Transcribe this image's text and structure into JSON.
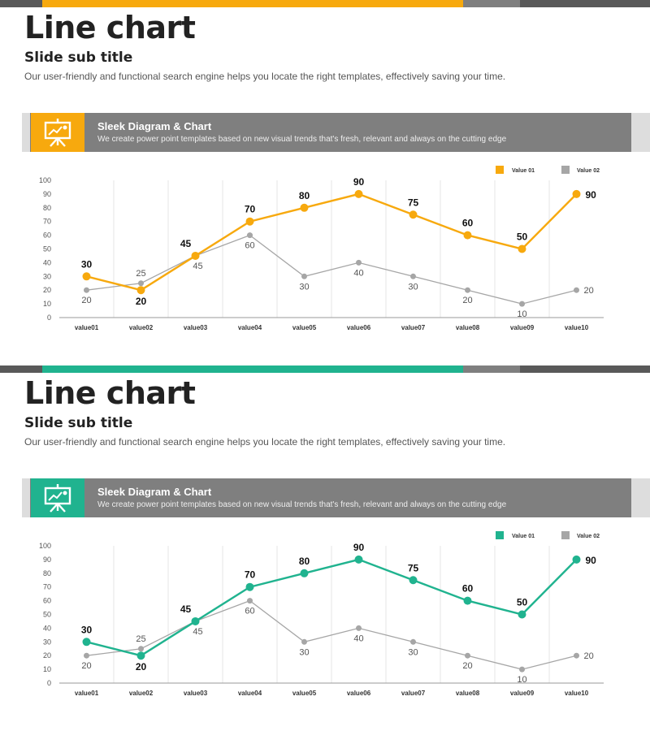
{
  "colors": {
    "gray_bar": "#7f7f7f",
    "dark_bar": "#595959",
    "series2": "#a6a6a6"
  },
  "slides": [
    {
      "accent": "#f7a90e",
      "title": "Line chart",
      "subtitle": "Slide sub title",
      "description": "Our user-friendly and functional search engine helps you locate the right templates, effectively saving your time.",
      "banner": {
        "icon": "presentation-board-icon",
        "title": "Sleek Diagram & Chart",
        "description": "We create power point templates based on new visual trends that's fresh, relevant and always on the cutting edge"
      }
    },
    {
      "accent": "#20b38f",
      "title": "Line chart",
      "subtitle": "Slide sub title",
      "description": "Our user-friendly and functional search engine helps you locate the right templates, effectively saving your time.",
      "banner": {
        "icon": "presentation-board-icon",
        "title": "Sleek Diagram & Chart",
        "description": "We create power point templates based on new visual trends that's fresh, relevant and always on the cutting edge"
      }
    }
  ],
  "chart_data": [
    {
      "type": "line",
      "categories": [
        "value01",
        "value02",
        "value03",
        "value04",
        "value05",
        "value06",
        "value07",
        "value08",
        "value09",
        "value10"
      ],
      "series": [
        {
          "name": "Value 01",
          "values": [
            30,
            20,
            45,
            70,
            80,
            90,
            75,
            60,
            50,
            90
          ]
        },
        {
          "name": "Value 02",
          "values": [
            20,
            25,
            45,
            60,
            30,
            40,
            30,
            20,
            10,
            20
          ]
        }
      ],
      "ylim": [
        0,
        100
      ],
      "yticks": [
        0,
        10,
        20,
        30,
        40,
        50,
        60,
        70,
        80,
        90,
        100
      ],
      "legend": "top-right"
    },
    {
      "type": "line",
      "categories": [
        "value01",
        "value02",
        "value03",
        "value04",
        "value05",
        "value06",
        "value07",
        "value08",
        "value09",
        "value10"
      ],
      "series": [
        {
          "name": "Value 01",
          "values": [
            30,
            20,
            45,
            70,
            80,
            90,
            75,
            60,
            50,
            90
          ]
        },
        {
          "name": "Value 02",
          "values": [
            20,
            25,
            45,
            60,
            30,
            40,
            30,
            20,
            10,
            20
          ]
        }
      ],
      "ylim": [
        0,
        100
      ],
      "yticks": [
        0,
        10,
        20,
        30,
        40,
        50,
        60,
        70,
        80,
        90,
        100
      ],
      "legend": "top-right"
    }
  ]
}
